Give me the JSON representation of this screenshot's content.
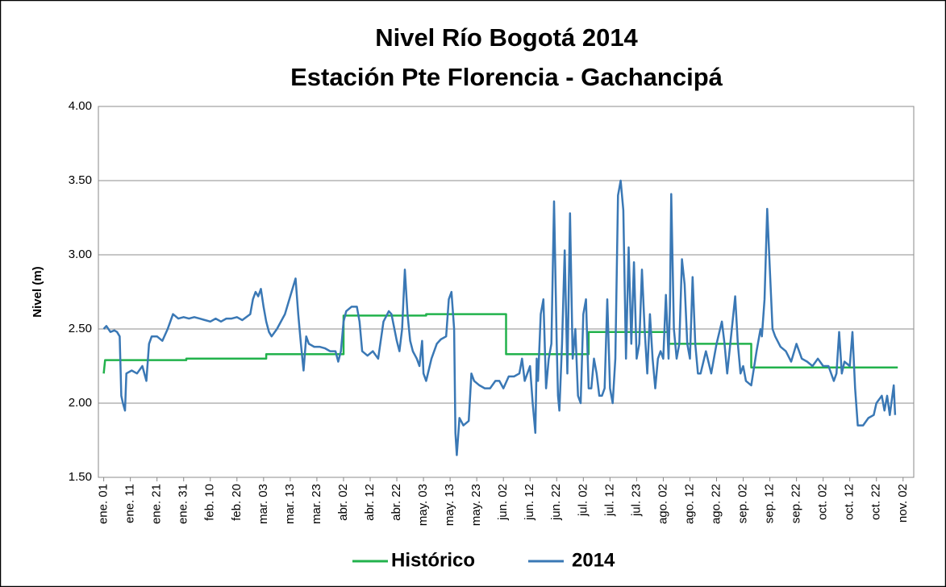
{
  "chart_data": {
    "type": "line",
    "title": "Nivel Río Bogotá 2014",
    "subtitle": "Estación Pte Florencia - Gachancipá",
    "y_label": "Nivel (m)",
    "xlim": [
      -2,
      304
    ],
    "ylim": [
      1.5,
      4
    ],
    "yticks": [
      {
        "value": 1.5,
        "label": "1.50"
      },
      {
        "value": 2,
        "label": "2.00"
      },
      {
        "value": 2.5,
        "label": "2.50"
      },
      {
        "value": 3,
        "label": "3.00"
      },
      {
        "value": 3.5,
        "label": "3.50"
      },
      {
        "value": 4,
        "label": "4.00"
      }
    ],
    "xticks": [
      {
        "value": 0,
        "label": "ene. 01"
      },
      {
        "value": 10,
        "label": "ene. 11"
      },
      {
        "value": 20,
        "label": "ene. 21"
      },
      {
        "value": 30,
        "label": "ene. 31"
      },
      {
        "value": 40,
        "label": "feb. 10"
      },
      {
        "value": 50,
        "label": "feb. 20"
      },
      {
        "value": 60,
        "label": "mar. 03"
      },
      {
        "value": 70,
        "label": "mar. 13"
      },
      {
        "value": 80,
        "label": "mar. 23"
      },
      {
        "value": 90,
        "label": "abr. 02"
      },
      {
        "value": 100,
        "label": "abr. 12"
      },
      {
        "value": 110,
        "label": "abr. 22"
      },
      {
        "value": 120,
        "label": "may. 03"
      },
      {
        "value": 130,
        "label": "may. 13"
      },
      {
        "value": 140,
        "label": "may. 23"
      },
      {
        "value": 150,
        "label": "jun. 02"
      },
      {
        "value": 160,
        "label": "jun. 12"
      },
      {
        "value": 170,
        "label": "jun. 22"
      },
      {
        "value": 180,
        "label": "jul. 02"
      },
      {
        "value": 190,
        "label": "jul. 12"
      },
      {
        "value": 200,
        "label": "jul. 23"
      },
      {
        "value": 210,
        "label": "ago. 02"
      },
      {
        "value": 220,
        "label": "ago. 12"
      },
      {
        "value": 230,
        "label": "ago. 22"
      },
      {
        "value": 240,
        "label": "sep. 02"
      },
      {
        "value": 250,
        "label": "sep. 12"
      },
      {
        "value": 260,
        "label": "sep. 22"
      },
      {
        "value": 270,
        "label": "oct. 02"
      },
      {
        "value": 280,
        "label": "oct. 12"
      },
      {
        "value": 290,
        "label": "oct. 22"
      },
      {
        "value": 300,
        "label": "nov. 02"
      }
    ],
    "grid": true,
    "legend": "bottom",
    "series": [
      {
        "name": "Histórico",
        "color": "#22b24c",
        "x": [
          0,
          0.5,
          31,
          31,
          61,
          61,
          90,
          90,
          121,
          121,
          151,
          151,
          182,
          182,
          212,
          212,
          243,
          243,
          298
        ],
        "values": [
          2.2,
          2.29,
          2.29,
          2.3,
          2.3,
          2.33,
          2.33,
          2.59,
          2.59,
          2.6,
          2.6,
          2.33,
          2.33,
          2.48,
          2.48,
          2.4,
          2.4,
          2.24,
          2.24
        ]
      },
      {
        "name": "2014",
        "color": "#3a78b5",
        "x": [
          0,
          1,
          2.5,
          4,
          5,
          6,
          6.6,
          7.2,
          8,
          8.5,
          10.5,
          12.5,
          14.5,
          16,
          17,
          18,
          20,
          22,
          24,
          25,
          26,
          28,
          30,
          32,
          34,
          36,
          38,
          40,
          42,
          44,
          46,
          48,
          50,
          52,
          55,
          56,
          57,
          58,
          59,
          60,
          61,
          62,
          63,
          65,
          68,
          72,
          73,
          74,
          75,
          76,
          77,
          79,
          81,
          83,
          85,
          87,
          88,
          89,
          90,
          91,
          93,
          95,
          96,
          97,
          99,
          101,
          103,
          105,
          107,
          108,
          110,
          111,
          112,
          113,
          114,
          115,
          116,
          117.5,
          118.5,
          119.5,
          120,
          121,
          123,
          125,
          126.5,
          128.5,
          129.5,
          130.5,
          131.5,
          132,
          132.5,
          133.5,
          135,
          137,
          138,
          139,
          141,
          143,
          145,
          147,
          148.5,
          150,
          152,
          154,
          156,
          157,
          158,
          160,
          161,
          162,
          162.5,
          163,
          164,
          165,
          166,
          167,
          168,
          169,
          170,
          170.5,
          171,
          172,
          173,
          174,
          175,
          176,
          177,
          178,
          179,
          180,
          181,
          182,
          183,
          184,
          185,
          186,
          187,
          188,
          189,
          190,
          191,
          192,
          193,
          194,
          195,
          196,
          197,
          198,
          199,
          200,
          201,
          202,
          203,
          204,
          205,
          206,
          207,
          208,
          209,
          210,
          211,
          212,
          212.5,
          213,
          214,
          215,
          216,
          217,
          218,
          219,
          220,
          221,
          222,
          223,
          224,
          226,
          228,
          230,
          232,
          233,
          234,
          237,
          238,
          239,
          240,
          241,
          243,
          245,
          246.5,
          247,
          248,
          249,
          250,
          251,
          252,
          254,
          256,
          258,
          260,
          262,
          264,
          266,
          268,
          270,
          272,
          274,
          275,
          276,
          277,
          278,
          280,
          281,
          282,
          283,
          285,
          287,
          289,
          290,
          292,
          293,
          294,
          295,
          296.5,
          297
        ],
        "values": [
          2.5,
          2.52,
          2.48,
          2.49,
          2.48,
          2.45,
          2.05,
          2.0,
          1.95,
          2.2,
          2.22,
          2.2,
          2.25,
          2.15,
          2.4,
          2.45,
          2.45,
          2.42,
          2.5,
          2.55,
          2.6,
          2.57,
          2.58,
          2.57,
          2.58,
          2.57,
          2.56,
          2.55,
          2.57,
          2.55,
          2.57,
          2.57,
          2.58,
          2.56,
          2.6,
          2.7,
          2.75,
          2.72,
          2.77,
          2.65,
          2.55,
          2.48,
          2.45,
          2.5,
          2.6,
          2.84,
          2.6,
          2.4,
          2.22,
          2.45,
          2.4,
          2.38,
          2.38,
          2.37,
          2.35,
          2.35,
          2.28,
          2.35,
          2.55,
          2.62,
          2.65,
          2.65,
          2.55,
          2.35,
          2.32,
          2.35,
          2.3,
          2.55,
          2.62,
          2.6,
          2.42,
          2.35,
          2.5,
          2.9,
          2.6,
          2.42,
          2.35,
          2.3,
          2.25,
          2.42,
          2.2,
          2.15,
          2.3,
          2.4,
          2.43,
          2.45,
          2.7,
          2.75,
          2.5,
          1.8,
          1.65,
          1.9,
          1.85,
          1.88,
          2.2,
          2.15,
          2.12,
          2.1,
          2.1,
          2.15,
          2.15,
          2.1,
          2.18,
          2.18,
          2.2,
          2.3,
          2.15,
          2.25,
          2.0,
          1.8,
          2.3,
          2.15,
          2.6,
          2.7,
          2.1,
          2.3,
          2.4,
          3.36,
          2.4,
          2.05,
          1.95,
          2.4,
          3.03,
          2.2,
          3.28,
          2.3,
          2.5,
          2.05,
          2.0,
          2.6,
          2.7,
          2.1,
          2.1,
          2.3,
          2.2,
          2.05,
          2.05,
          2.1,
          2.7,
          2.1,
          2.0,
          2.3,
          3.4,
          3.5,
          3.3,
          2.3,
          3.05,
          2.4,
          2.95,
          2.3,
          2.4,
          2.9,
          2.5,
          2.2,
          2.6,
          2.3,
          2.1,
          2.3,
          2.35,
          2.3,
          2.73,
          2.3,
          2.65,
          3.41,
          2.5,
          2.3,
          2.4,
          2.97,
          2.8,
          2.4,
          2.3,
          2.85,
          2.4,
          2.2,
          2.2,
          2.35,
          2.2,
          2.4,
          2.55,
          2.4,
          2.2,
          2.72,
          2.4,
          2.2,
          2.25,
          2.15,
          2.12,
          2.35,
          2.5,
          2.45,
          2.7,
          3.31,
          2.9,
          2.5,
          2.45,
          2.38,
          2.35,
          2.28,
          2.4,
          2.3,
          2.28,
          2.25,
          2.3,
          2.25,
          2.25,
          2.15,
          2.2,
          2.48,
          2.2,
          2.28,
          2.25,
          2.48,
          2.1,
          1.85,
          1.85,
          1.9,
          1.92,
          2.0,
          2.05,
          1.95,
          2.05,
          1.92,
          2.12,
          1.92
        ]
      }
    ]
  }
}
